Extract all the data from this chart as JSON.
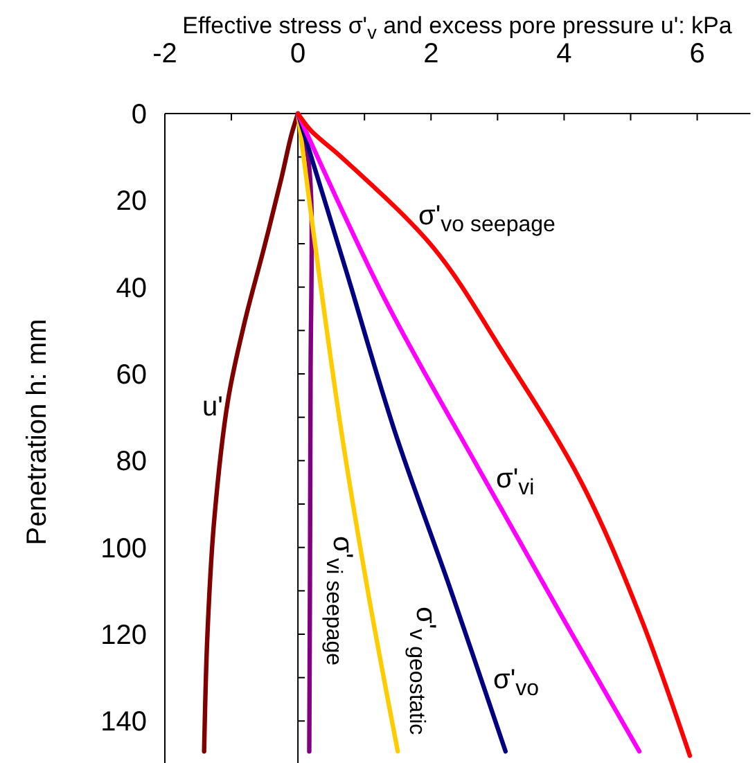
{
  "chart_data": {
    "type": "line",
    "xlabel": "Effective stress σ'$_{v}$ and excess pore pressure u': kPa",
    "ylabel": "Penetration h: mm",
    "xlim": [
      -2,
      6.8
    ],
    "ylim": [
      150,
      0
    ],
    "xticks": [
      -2,
      {
        "value": -1,
        "label": null
      },
      0,
      {
        "value": 1,
        "label": null
      },
      2,
      {
        "value": 3,
        "label": null
      },
      4,
      {
        "value": 5,
        "label": null
      },
      6
    ],
    "yticks": [
      0,
      {
        "value": 10,
        "label": null
      },
      20,
      {
        "value": 30,
        "label": null
      },
      40,
      {
        "value": 50,
        "label": null
      },
      60,
      {
        "value": 70,
        "label": null
      },
      80,
      {
        "value": 90,
        "label": null
      },
      100,
      {
        "value": 110,
        "label": null
      },
      120,
      {
        "value": 130,
        "label": null
      },
      140
    ],
    "line_style": "solid",
    "ref_lines": [
      {
        "axis": "x",
        "value": 0
      }
    ],
    "series": [
      {
        "color": "#800000",
        "x": [
          0,
          -0.1,
          -0.25,
          -0.51,
          -0.8,
          -1.05,
          -1.26,
          -1.36,
          -1.41
        ],
        "values": [
          0,
          5,
          15,
          31,
          48,
          66,
          94,
          120,
          147
        ]
      },
      {
        "color": "#800080",
        "x": [
          0,
          0.15,
          0.2,
          0.19,
          0.18,
          0.17
        ],
        "values": [
          0,
          10,
          20,
          60,
          110,
          147
        ]
      },
      {
        "color": "#ffcc00",
        "x": [
          0,
          0.3,
          0.65,
          1.05,
          1.5
        ],
        "values": [
          0,
          35,
          73,
          110,
          147
        ]
      },
      {
        "color": "#000080",
        "x": [
          0,
          0.72,
          1.45,
          2.3,
          3.12
        ],
        "values": [
          0,
          36,
          73,
          110,
          147
        ]
      },
      {
        "color": "#ff00ff",
        "x": [
          0,
          1.28,
          2.74,
          3.99,
          5.13
        ],
        "values": [
          0,
          42,
          82.5,
          116.5,
          147
        ]
      },
      {
        "color": "#ff0000",
        "x": [
          0,
          0.2,
          0.65,
          2.04,
          3.08,
          4.26,
          5.16,
          5.89
        ],
        "values": [
          0,
          4,
          10,
          31,
          55,
          85,
          116.5,
          148
        ]
      }
    ],
    "annotations": [
      "u'",
      "σ'$_{vo seepage}$",
      "σ'$_{vi}$",
      "σ'$_{vi seepage}$",
      "σ'$_{v geostatic}$",
      "σ'$_{vo}$"
    ]
  }
}
